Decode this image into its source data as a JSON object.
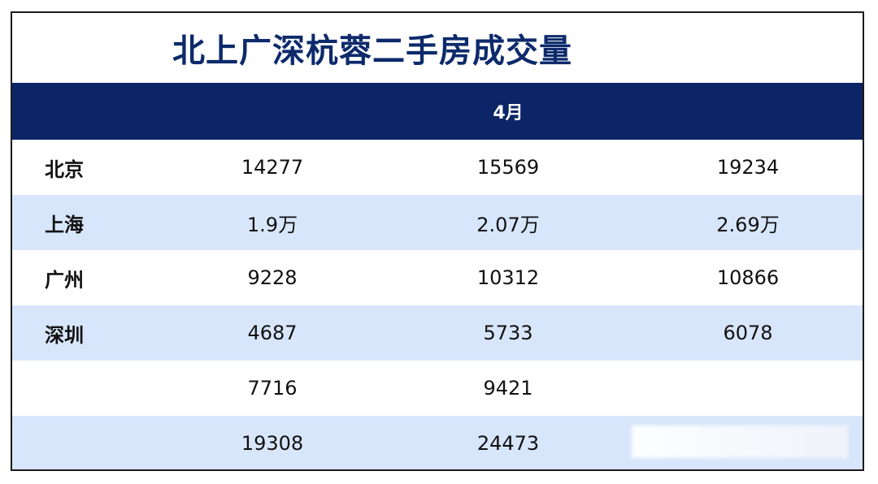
{
  "title": "北上广深杭蓉二手房成交量",
  "header": {
    "col0": "",
    "col1": "",
    "col2": "4月",
    "col3": ""
  },
  "rows": [
    {
      "city": "北京",
      "v1": "14277",
      "v2": "15569",
      "v3": "19234"
    },
    {
      "city": "上海",
      "v1": "1.9万",
      "v2": "2.07万",
      "v3": "2.69万"
    },
    {
      "city": "广州",
      "v1": "9228",
      "v2": "10312",
      "v3": "10866"
    },
    {
      "city": "深圳",
      "v1": "4687",
      "v2": "5733",
      "v3": "6078"
    },
    {
      "city": "",
      "v1": "7716",
      "v2": "9421",
      "v3": ""
    },
    {
      "city": "",
      "v1": "19308",
      "v2": "24473",
      "v3": ""
    }
  ],
  "colors": {
    "title": "#0d2a6b",
    "header_bg": "#0b2566",
    "stripe": "#d8e6fb"
  }
}
